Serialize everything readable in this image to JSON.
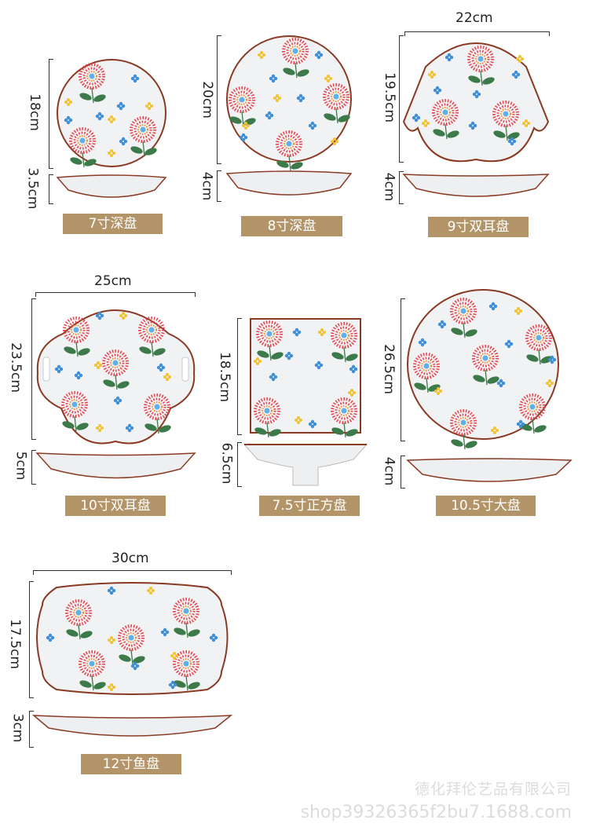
{
  "products": [
    {
      "name": "7寸深盘",
      "width": null,
      "height": "18cm",
      "depth": "3.5cm"
    },
    {
      "name": "8寸深盘",
      "width": null,
      "height": "20cm",
      "depth": "4cm"
    },
    {
      "name": "9寸双耳盘",
      "width": "22cm",
      "height": "19.5cm",
      "depth": "4cm"
    },
    {
      "name": "10寸双耳盘",
      "width": "25cm",
      "height": "23.5cm",
      "depth": "5cm"
    },
    {
      "name": "7.5寸正方盘",
      "width": null,
      "height": "18.5cm",
      "depth": "6.5cm"
    },
    {
      "name": "10.5寸大盘",
      "width": null,
      "height": "26.5cm",
      "depth": "4cm"
    },
    {
      "name": "12寸鱼盘",
      "width": "30cm",
      "height": "17.5cm",
      "depth": "3cm"
    }
  ],
  "watermark": {
    "company": "德化拜伦艺品有限公司",
    "url": "shop39326365f2bu7.1688.com"
  },
  "colors": {
    "label_bg": "#b39468",
    "rim": "#8a3a22",
    "flower": "#e8404a",
    "blue": "#3f8fd8",
    "yellow": "#f2c230",
    "leaf": "#3c7a4a"
  }
}
